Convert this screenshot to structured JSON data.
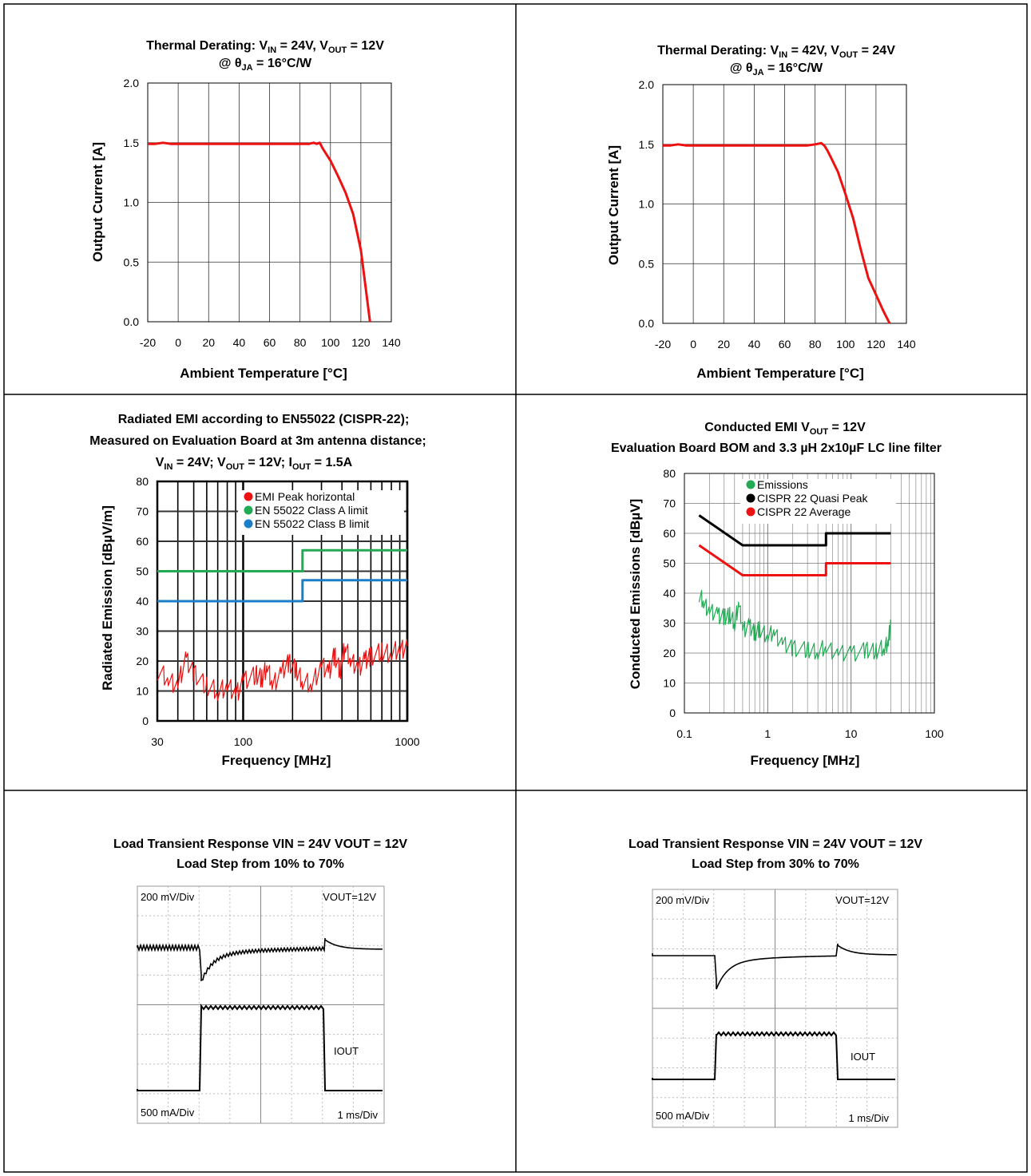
{
  "colors": {
    "red": "#ee1111",
    "green": "#22aa55",
    "blue": "#1a7ec8",
    "black": "#000000"
  },
  "chart_data": [
    {
      "type": "line",
      "title_parts": [
        "Thermal Derating: V",
        "IN",
        " = 24V, V",
        "OUT",
        " = 12V"
      ],
      "subtitle_parts": [
        "@ θ",
        "JA",
        " = 16°C/W"
      ],
      "xlabel": "Ambient Temperature [°C]",
      "ylabel": "Output Current [A]",
      "xlim": [
        -20,
        140
      ],
      "ylim": [
        0,
        2.0
      ],
      "x_ticks": [
        "-20",
        "0",
        "20",
        "40",
        "60",
        "80",
        "100",
        "120",
        "140"
      ],
      "y_ticks": [
        "0.0",
        "0.5",
        "1.0",
        "1.5",
        "2.0"
      ],
      "grid": true,
      "series": [
        {
          "color": "red",
          "points": [
            [
              -20,
              1.49
            ],
            [
              -15,
              1.49
            ],
            [
              -10,
              1.5
            ],
            [
              -5,
              1.49
            ],
            [
              0,
              1.49
            ],
            [
              20,
              1.49
            ],
            [
              40,
              1.49
            ],
            [
              60,
              1.49
            ],
            [
              80,
              1.49
            ],
            [
              86,
              1.49
            ],
            [
              89,
              1.5
            ],
            [
              91,
              1.49
            ],
            [
              93,
              1.5
            ],
            [
              95,
              1.45
            ],
            [
              100,
              1.35
            ],
            [
              105,
              1.22
            ],
            [
              110,
              1.08
            ],
            [
              115,
              0.9
            ],
            [
              120,
              0.6
            ],
            [
              123,
              0.3
            ],
            [
              125,
              0.1
            ],
            [
              126,
              0.0
            ]
          ]
        }
      ]
    },
    {
      "type": "line",
      "title_parts": [
        "Thermal Derating: V",
        "IN",
        " = 42V, V",
        "OUT",
        " = 24V"
      ],
      "subtitle_parts": [
        "@ θ",
        "JA",
        " = 16°C/W"
      ],
      "xlabel": "Ambient Temperature [°C]",
      "ylabel": "Output Current [A]",
      "xlim": [
        -20,
        140
      ],
      "ylim": [
        0,
        2.0
      ],
      "x_ticks": [
        "-20",
        "0",
        "20",
        "40",
        "60",
        "80",
        "100",
        "120",
        "140"
      ],
      "y_ticks": [
        "0.0",
        "0.5",
        "1.0",
        "1.5",
        "2.0"
      ],
      "grid": true,
      "series": [
        {
          "color": "red",
          "points": [
            [
              -20,
              1.49
            ],
            [
              -15,
              1.49
            ],
            [
              -10,
              1.5
            ],
            [
              -5,
              1.49
            ],
            [
              0,
              1.49
            ],
            [
              20,
              1.49
            ],
            [
              40,
              1.49
            ],
            [
              60,
              1.49
            ],
            [
              75,
              1.49
            ],
            [
              80,
              1.5
            ],
            [
              84,
              1.51
            ],
            [
              86,
              1.49
            ],
            [
              88,
              1.45
            ],
            [
              90,
              1.4
            ],
            [
              95,
              1.27
            ],
            [
              100,
              1.08
            ],
            [
              105,
              0.88
            ],
            [
              110,
              0.62
            ],
            [
              115,
              0.38
            ],
            [
              120,
              0.24
            ],
            [
              125,
              0.1
            ],
            [
              129,
              0.0
            ]
          ]
        }
      ]
    },
    {
      "type": "line",
      "title_lines": [
        "Radiated EMI according to EN55022 (CISPR-22);",
        "Measured on Evaluation Board at 3m antenna distance;"
      ],
      "title_parts_3": [
        "V",
        "IN",
        " = 24V; V",
        "OUT",
        " = 12V; I",
        "OUT",
        " = 1.5A"
      ],
      "xlabel": "Frequency [MHz]",
      "ylabel": "Radiated Emission [dBµV/m]",
      "xscale": "log",
      "xlim": [
        30,
        1000
      ],
      "ylim": [
        0,
        80
      ],
      "x_ticks": [
        "30",
        "100",
        "1000"
      ],
      "y_ticks": [
        "0",
        "10",
        "20",
        "30",
        "40",
        "50",
        "60",
        "70",
        "80"
      ],
      "grid": true,
      "legend_position": "top-right",
      "series": [
        {
          "name": "EMI Peak horizontal",
          "color": "red",
          "points": [
            [
              30,
              17
            ],
            [
              35,
              14
            ],
            [
              40,
              12
            ],
            [
              45,
              21
            ],
            [
              50,
              16
            ],
            [
              60,
              12
            ],
            [
              70,
              10
            ],
            [
              80,
              12
            ],
            [
              90,
              9
            ],
            [
              100,
              13
            ],
            [
              120,
              16
            ],
            [
              130,
              14
            ],
            [
              140,
              19
            ],
            [
              150,
              12
            ],
            [
              170,
              16
            ],
            [
              190,
              20
            ],
            [
              210,
              17
            ],
            [
              230,
              14
            ],
            [
              260,
              12
            ],
            [
              300,
              19
            ],
            [
              330,
              16
            ],
            [
              360,
              22
            ],
            [
              390,
              17
            ],
            [
              420,
              26
            ],
            [
              450,
              20
            ],
            [
              500,
              18
            ],
            [
              550,
              20
            ],
            [
              600,
              22
            ],
            [
              700,
              23
            ],
            [
              800,
              23
            ],
            [
              900,
              24
            ],
            [
              1000,
              25
            ]
          ]
        },
        {
          "name": "EN 55022 Class A limit",
          "color": "green",
          "points": [
            [
              30,
              50
            ],
            [
              230,
              50
            ],
            [
              230,
              57
            ],
            [
              1000,
              57
            ]
          ]
        },
        {
          "name": "EN 55022 Class B limit",
          "color": "blue",
          "points": [
            [
              30,
              40
            ],
            [
              230,
              40
            ],
            [
              230,
              47
            ],
            [
              1000,
              47
            ]
          ]
        }
      ]
    },
    {
      "type": "line",
      "title_parts": [
        "Conducted EMI  V",
        "OUT",
        " = 12V"
      ],
      "title_line2": "Evaluation Board BOM and 3.3 µH 2x10µF LC line filter",
      "xlabel": "Frequency [MHz]",
      "ylabel": "Conducted Emissions [dBµV]",
      "xscale": "log",
      "xlim": [
        0.1,
        100
      ],
      "ylim": [
        0,
        80
      ],
      "x_ticks": [
        "0.1",
        "1",
        "10",
        "100"
      ],
      "y_ticks": [
        "0",
        "10",
        "20",
        "30",
        "40",
        "50",
        "60",
        "70",
        "80"
      ],
      "grid": true,
      "legend_position": "top-left",
      "series": [
        {
          "name": "Emissions",
          "color": "green",
          "points": [
            [
              0.15,
              40
            ],
            [
              0.17,
              37
            ],
            [
              0.2,
              34
            ],
            [
              0.25,
              33
            ],
            [
              0.3,
              32
            ],
            [
              0.35,
              33
            ],
            [
              0.4,
              30
            ],
            [
              0.45,
              37
            ],
            [
              0.5,
              28
            ],
            [
              0.6,
              29
            ],
            [
              0.7,
              27
            ],
            [
              0.8,
              28
            ],
            [
              1.0,
              26
            ],
            [
              1.2,
              27
            ],
            [
              1.5,
              23
            ],
            [
              2,
              22
            ],
            [
              3,
              21
            ],
            [
              4,
              21
            ],
            [
              5,
              22
            ],
            [
              7,
              20
            ],
            [
              10,
              20
            ],
            [
              15,
              21
            ],
            [
              20,
              21
            ],
            [
              25,
              22
            ],
            [
              28,
              24
            ],
            [
              30,
              30
            ]
          ]
        },
        {
          "name": "CISPR 22 Quasi Peak",
          "color": "black",
          "points": [
            [
              0.15,
              66
            ],
            [
              0.5,
              56
            ],
            [
              5,
              56
            ],
            [
              5,
              60
            ],
            [
              30,
              60
            ]
          ]
        },
        {
          "name": "CISPR 22 Average",
          "color": "red",
          "points": [
            [
              0.15,
              56
            ],
            [
              0.5,
              46
            ],
            [
              5,
              46
            ],
            [
              5,
              50
            ],
            [
              30,
              50
            ]
          ]
        }
      ]
    }
  ],
  "scopes": [
    {
      "title_line1": "Load Transient Response VIN = 24V VOUT = 12V",
      "title_line2": "Load Step from 10% to 70%",
      "top_left": "200 mV/Div",
      "top_right": "VOUT=12V",
      "iout_label": "IOUT",
      "bottom_left": "500 mA/Div",
      "bottom_right": "1 ms/Div"
    },
    {
      "title_line1": "Load Transient Response VIN = 24V VOUT = 12V",
      "title_line2": "Load Step from 30% to 70%",
      "top_left": "200 mV/Div",
      "top_right": "VOUT=12V",
      "iout_label": "IOUT",
      "bottom_left": "500 mA/Div",
      "bottom_right": "1 ms/Div"
    }
  ]
}
